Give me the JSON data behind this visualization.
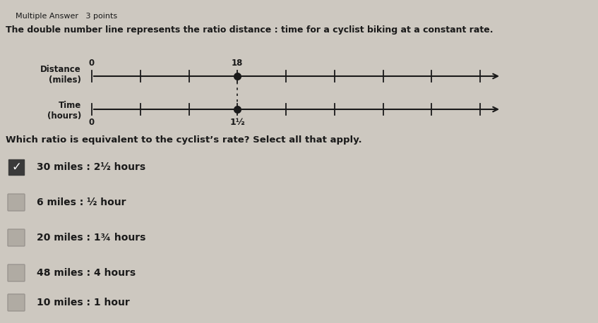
{
  "title_line1": "Multiple Answer   3 points",
  "title_line2": "The double number line represents the ratio distance : time for a cyclist biking at a constant rate.",
  "distance_label": "Distance\n(miles)",
  "time_label": "Time\n(hours)",
  "distance_zero": "0",
  "distance_mark": "18",
  "time_zero": "0",
  "time_mark": "1½",
  "question": "Which ratio is equivalent to the cyclist’s rate? Select all that apply.",
  "options": [
    {
      "text": "30 miles : 2½ hours",
      "checked": true
    },
    {
      "text": "6 miles : ½ hour",
      "checked": false
    },
    {
      "text": "20 miles : 1¾ hours",
      "checked": false
    },
    {
      "text": "48 miles : 4 hours",
      "checked": false
    },
    {
      "text": "10 miles : 1 hour",
      "checked": false
    }
  ],
  "bg_color": "#cdc8c0",
  "line_color": "#1a1a1a",
  "text_color": "#1a1a1a",
  "check_bg": "#3a3a3a",
  "check_color": "#ffffff",
  "empty_box_color": "#b0aba3"
}
